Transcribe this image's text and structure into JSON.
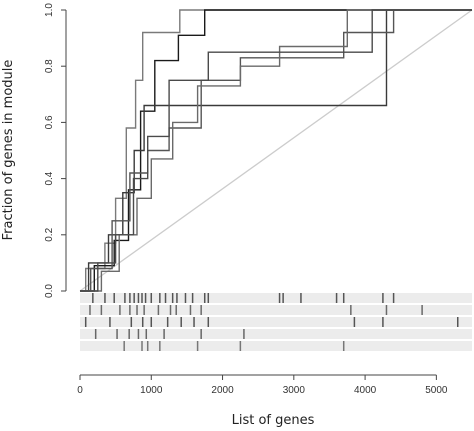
{
  "chart_data": {
    "type": "line",
    "xlabel": "List of genes",
    "ylabel": "Fraction of genes in module",
    "xlim": [
      0,
      5500
    ],
    "ylim": [
      0,
      1.0
    ],
    "x_ticks": [
      0,
      1000,
      2000,
      3000,
      4000,
      5000
    ],
    "y_ticks": [
      0.0,
      0.2,
      0.4,
      0.6,
      0.8,
      1.0
    ],
    "x_tick_labels": [
      "0",
      "1000",
      "2000",
      "3000",
      "4000",
      "5000"
    ],
    "y_tick_labels": [
      "0.0",
      "0.2",
      "0.4",
      "0.6",
      "0.8",
      "1.0"
    ],
    "grid": false,
    "diagonal": {
      "x": [
        0,
        5500
      ],
      "y": [
        0,
        1.0
      ],
      "color": "#cccccc"
    },
    "series": [
      {
        "color": "#7a7a7a",
        "x": [
          0,
          80,
          80,
          350,
          350,
          500,
          500,
          650,
          650,
          780,
          780,
          880,
          880,
          1400,
          1400,
          5500
        ],
        "y": [
          0,
          0,
          0.08,
          0.08,
          0.17,
          0.17,
          0.33,
          0.33,
          0.58,
          0.58,
          0.75,
          0.75,
          0.92,
          0.92,
          1.0,
          1.0
        ]
      },
      {
        "color": "#1a1a1a",
        "x": [
          0,
          200,
          200,
          480,
          480,
          680,
          680,
          850,
          850,
          1050,
          1050,
          1380,
          1380,
          1750,
          1750,
          2300,
          2300,
          4300,
          4300,
          5500
        ],
        "y": [
          0,
          0,
          0.09,
          0.09,
          0.18,
          0.18,
          0.36,
          0.36,
          0.64,
          0.64,
          0.82,
          0.82,
          0.91,
          0.91,
          1.0,
          1.0,
          1.0,
          1.0,
          1.0,
          1.0
        ]
      },
      {
        "color": "#3a3a3a",
        "x": [
          0,
          120,
          120,
          400,
          400,
          600,
          600,
          760,
          760,
          900,
          900,
          1500,
          1500,
          1800,
          1800,
          4300,
          4300,
          5500
        ],
        "y": [
          0,
          0,
          0.1,
          0.1,
          0.2,
          0.2,
          0.35,
          0.35,
          0.5,
          0.5,
          0.66,
          0.66,
          0.66,
          0.66,
          0.66,
          0.66,
          1.0,
          1.0
        ]
      },
      {
        "color": "#555555",
        "x": [
          0,
          150,
          150,
          450,
          450,
          700,
          700,
          950,
          950,
          1250,
          1250,
          1700,
          1700,
          2250,
          2250,
          3700,
          3700,
          4400,
          4400,
          5500
        ],
        "y": [
          0,
          0,
          0.08,
          0.08,
          0.25,
          0.25,
          0.42,
          0.42,
          0.5,
          0.5,
          0.58,
          0.58,
          0.75,
          0.75,
          0.83,
          0.83,
          0.92,
          0.92,
          1.0,
          1.0
        ]
      },
      {
        "color": "#6a6a6a",
        "x": [
          0,
          300,
          300,
          550,
          550,
          800,
          800,
          1000,
          1000,
          1300,
          1300,
          1650,
          1650,
          2250,
          2250,
          2800,
          2800,
          3750,
          3750,
          5500
        ],
        "y": [
          0,
          0,
          0.07,
          0.07,
          0.2,
          0.2,
          0.33,
          0.33,
          0.47,
          0.47,
          0.6,
          0.6,
          0.73,
          0.73,
          0.8,
          0.8,
          0.87,
          0.87,
          1.0,
          1.0
        ]
      },
      {
        "color": "#4a4a4a",
        "x": [
          0,
          250,
          250,
          500,
          500,
          750,
          750,
          950,
          950,
          1250,
          1250,
          1800,
          1800,
          4100,
          4100,
          5500
        ],
        "y": [
          0,
          0,
          0.1,
          0.1,
          0.2,
          0.2,
          0.4,
          0.4,
          0.55,
          0.55,
          0.75,
          0.75,
          0.85,
          0.85,
          1.0,
          1.0
        ]
      }
    ],
    "rug_tracks": [
      [
        180,
        350,
        480,
        630,
        700,
        760,
        820,
        870,
        920,
        1000,
        1120,
        1200,
        1300,
        1360,
        1480,
        1580,
        1750,
        1800,
        2800,
        2850,
        3100,
        3600,
        3700,
        4250,
        4400
      ],
      [
        140,
        300,
        560,
        700,
        800,
        900,
        1100,
        1270,
        1350,
        1550,
        1700,
        3800,
        4300,
        4800
      ],
      [
        80,
        420,
        720,
        880,
        1000,
        1230,
        1420,
        1600,
        1800,
        3850,
        4250,
        5300
      ],
      [
        220,
        520,
        690,
        820,
        930,
        1180,
        1700,
        2300
      ],
      [
        620,
        870,
        950,
        1120,
        1650,
        2250,
        3700
      ]
    ]
  }
}
